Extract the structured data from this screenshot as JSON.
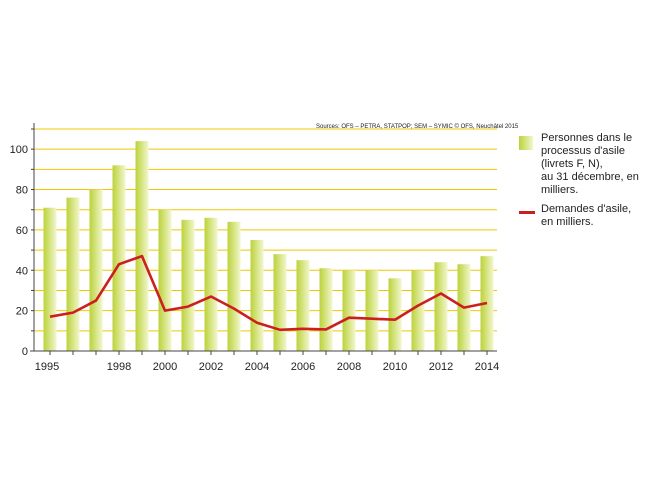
{
  "chart_data": {
    "type": "bar",
    "source": "Sources: OFS – PETRA, STATPOP; SEM – SYMIC  © OFS, Neuchâtel 2015",
    "title": "",
    "xlabel": "",
    "ylabel": "",
    "ylim": [
      0,
      110
    ],
    "yticks": [
      0,
      20,
      40,
      60,
      80,
      100
    ],
    "grid": true,
    "legend_position": "right",
    "x": [
      1995,
      1996,
      1997,
      1998,
      1999,
      2000,
      2001,
      2002,
      2003,
      2004,
      2005,
      2006,
      2007,
      2008,
      2009,
      2010,
      2011,
      2012,
      2013,
      2014
    ],
    "x_tick_labels": [
      "1995",
      "1998",
      "2000",
      "2002",
      "2004",
      "2006",
      "2008",
      "2010",
      "2012",
      "2014"
    ],
    "series": [
      {
        "name": "Personnes dans le\nprocessus d'asile\n(livrets F, N),\nau 31 décembre, en milliers.",
        "kind": "bar",
        "color": "#bcd23a",
        "values": [
          71,
          76,
          80,
          92,
          104,
          70,
          65,
          66,
          64,
          55,
          48,
          45,
          41,
          40,
          40,
          36,
          40,
          44,
          43,
          47
        ]
      },
      {
        "name": "Demandes d'asile,\nen milliers.",
        "kind": "line",
        "color": "#cc1f1f",
        "values": [
          17,
          19,
          25,
          43,
          47,
          20,
          22,
          27,
          21,
          14,
          10.5,
          11,
          10.7,
          16.5,
          16,
          15.5,
          22.5,
          28.5,
          21.5,
          23.8
        ]
      }
    ],
    "colors": {
      "grid": "#f0c800",
      "axis": "#444444",
      "bar_light": "#f2f7cf"
    }
  }
}
